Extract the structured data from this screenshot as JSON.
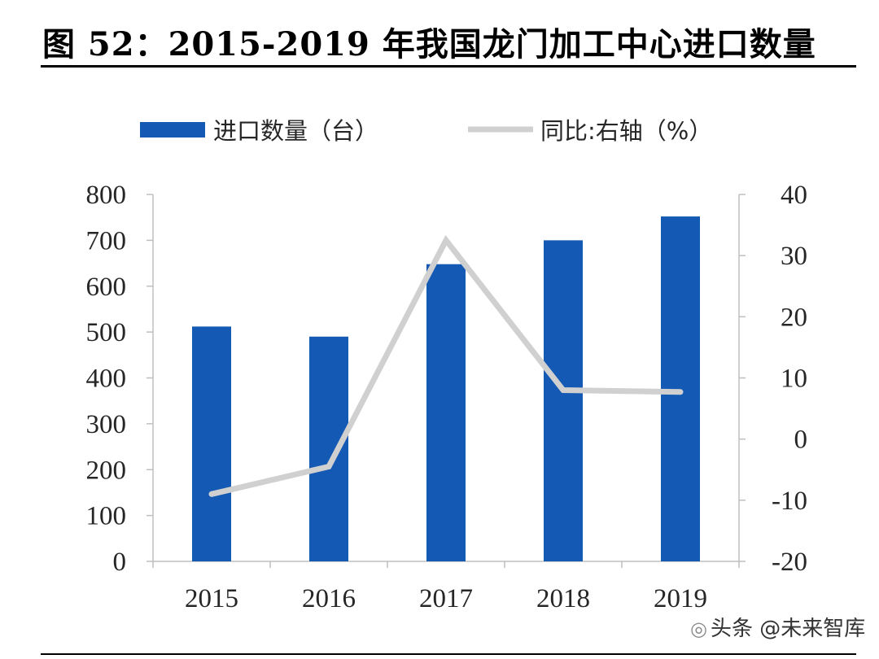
{
  "title": "图 52：2015-2019 年我国龙门加工中心进口数量",
  "watermark": "头条 @未来智库",
  "colors": {
    "bar": "#1459B3",
    "line": "#D0D0D0",
    "axis": "#BFBFBF"
  },
  "chart_data": {
    "type": "bar+line",
    "categories": [
      "2015",
      "2016",
      "2017",
      "2018",
      "2019"
    ],
    "series": [
      {
        "name": "进口数量（台）",
        "type": "bar",
        "axis": "left",
        "values": [
          512,
          490,
          648,
          700,
          752
        ]
      },
      {
        "name": "同比:右轴（%）",
        "type": "line",
        "axis": "right",
        "values": [
          -9,
          -4.5,
          32.5,
          8,
          7.7
        ]
      }
    ],
    "y_left": {
      "min": 0,
      "max": 800,
      "ticks": [
        "0",
        "100",
        "200",
        "300",
        "400",
        "500",
        "600",
        "700",
        "800"
      ]
    },
    "y_right": {
      "min": -20,
      "max": 40,
      "ticks": [
        "-20",
        "-10",
        "0",
        "10",
        "20",
        "30",
        "40"
      ]
    },
    "legend_position": "top",
    "grid": false
  }
}
